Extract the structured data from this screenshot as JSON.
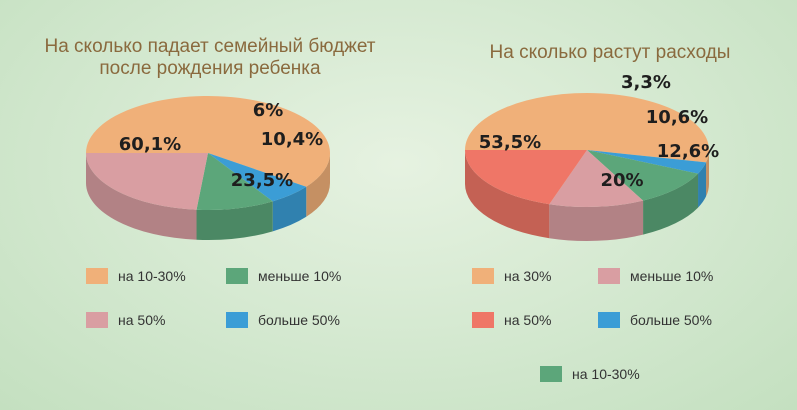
{
  "colors": {
    "orange": "#f0b079",
    "pink": "#d99ea2",
    "green": "#5ca67a",
    "blue": "#3b9dd6",
    "red": "#ef7667",
    "title": "#8a6a3e"
  },
  "chart_data": [
    {
      "type": "pie",
      "title": "На сколько падает семейный бюджет после рождения ребенка",
      "slices": [
        {
          "label": "на 10-30%",
          "value": 60.1,
          "value_label": "60,1%",
          "color": "#f0b079"
        },
        {
          "label": "больше 50%",
          "value": 6,
          "value_label": "6%",
          "color": "#3b9dd6"
        },
        {
          "label": "меньше 10%",
          "value": 10.4,
          "value_label": "10,4%",
          "color": "#5ca67a"
        },
        {
          "label": "на 50%",
          "value": 23.5,
          "value_label": "23,5%",
          "color": "#d99ea2"
        }
      ],
      "legend": [
        "на 10-30%",
        "меньше 10%",
        "на 50%",
        "больше 50%"
      ]
    },
    {
      "type": "pie",
      "title": "На сколько растут расходы",
      "slices": [
        {
          "label": "на 30%",
          "value": 53.5,
          "value_label": "53,5%",
          "color": "#f0b079"
        },
        {
          "label": "больше 50%",
          "value": 3.3,
          "value_label": "3,3%",
          "color": "#3b9dd6"
        },
        {
          "label": "на 10-30%",
          "value": 10.6,
          "value_label": "10,6%",
          "color": "#5ca67a"
        },
        {
          "label": "меньше 10%",
          "value": 12.6,
          "value_label": "12,6%",
          "color": "#d99ea2"
        },
        {
          "label": "на 50%",
          "value": 20,
          "value_label": "20%",
          "color": "#ef7667"
        }
      ],
      "legend": [
        "на 30%",
        "меньше 10%",
        "на 50%",
        "больше 50%",
        "на 10-30%"
      ]
    }
  ]
}
